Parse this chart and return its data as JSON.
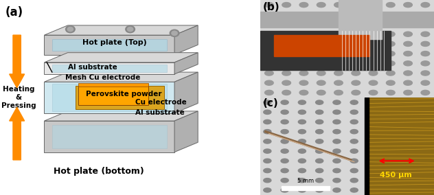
{
  "fig_width": 6.32,
  "fig_height": 2.84,
  "dpi": 100,
  "bg_color": "#ffffff",
  "panel_a": {
    "label": "(a)",
    "heating_pressing_text": "Heating\n&\nPressing",
    "arrow_color": "#FF8C00",
    "hot_plate_top_label": "Hot plate (Top)",
    "hot_plate_bottom_label": "Hot plate (bottom)",
    "al_substrate_top": "Al substrate",
    "mesh_cu": "Mesh Cu electrode",
    "perovskite": "Perovskite powder",
    "cu_electrode": "Cu electrode",
    "al_substrate_bottom": "Al substrate",
    "plate_color": "#c8c8c8",
    "blue_fill": "#add8e6",
    "orange_fill": "#FFA500",
    "gold_fill": "#DAA520"
  },
  "panel_b": {
    "label": "(b)",
    "bg_color": "#d8d8d8",
    "dot_color": "#999999",
    "caliper_color": "#aaaaaa",
    "sample_color": "#CC4400",
    "dark_bar_color": "#333333"
  },
  "panel_c": {
    "label": "(c)",
    "scale_bar_label_left": "5 mm",
    "scale_bar_label_right": "450 μm",
    "arrow_color": "#FF0000",
    "gold_color": "#8B6914",
    "dot_color": "#888888"
  }
}
